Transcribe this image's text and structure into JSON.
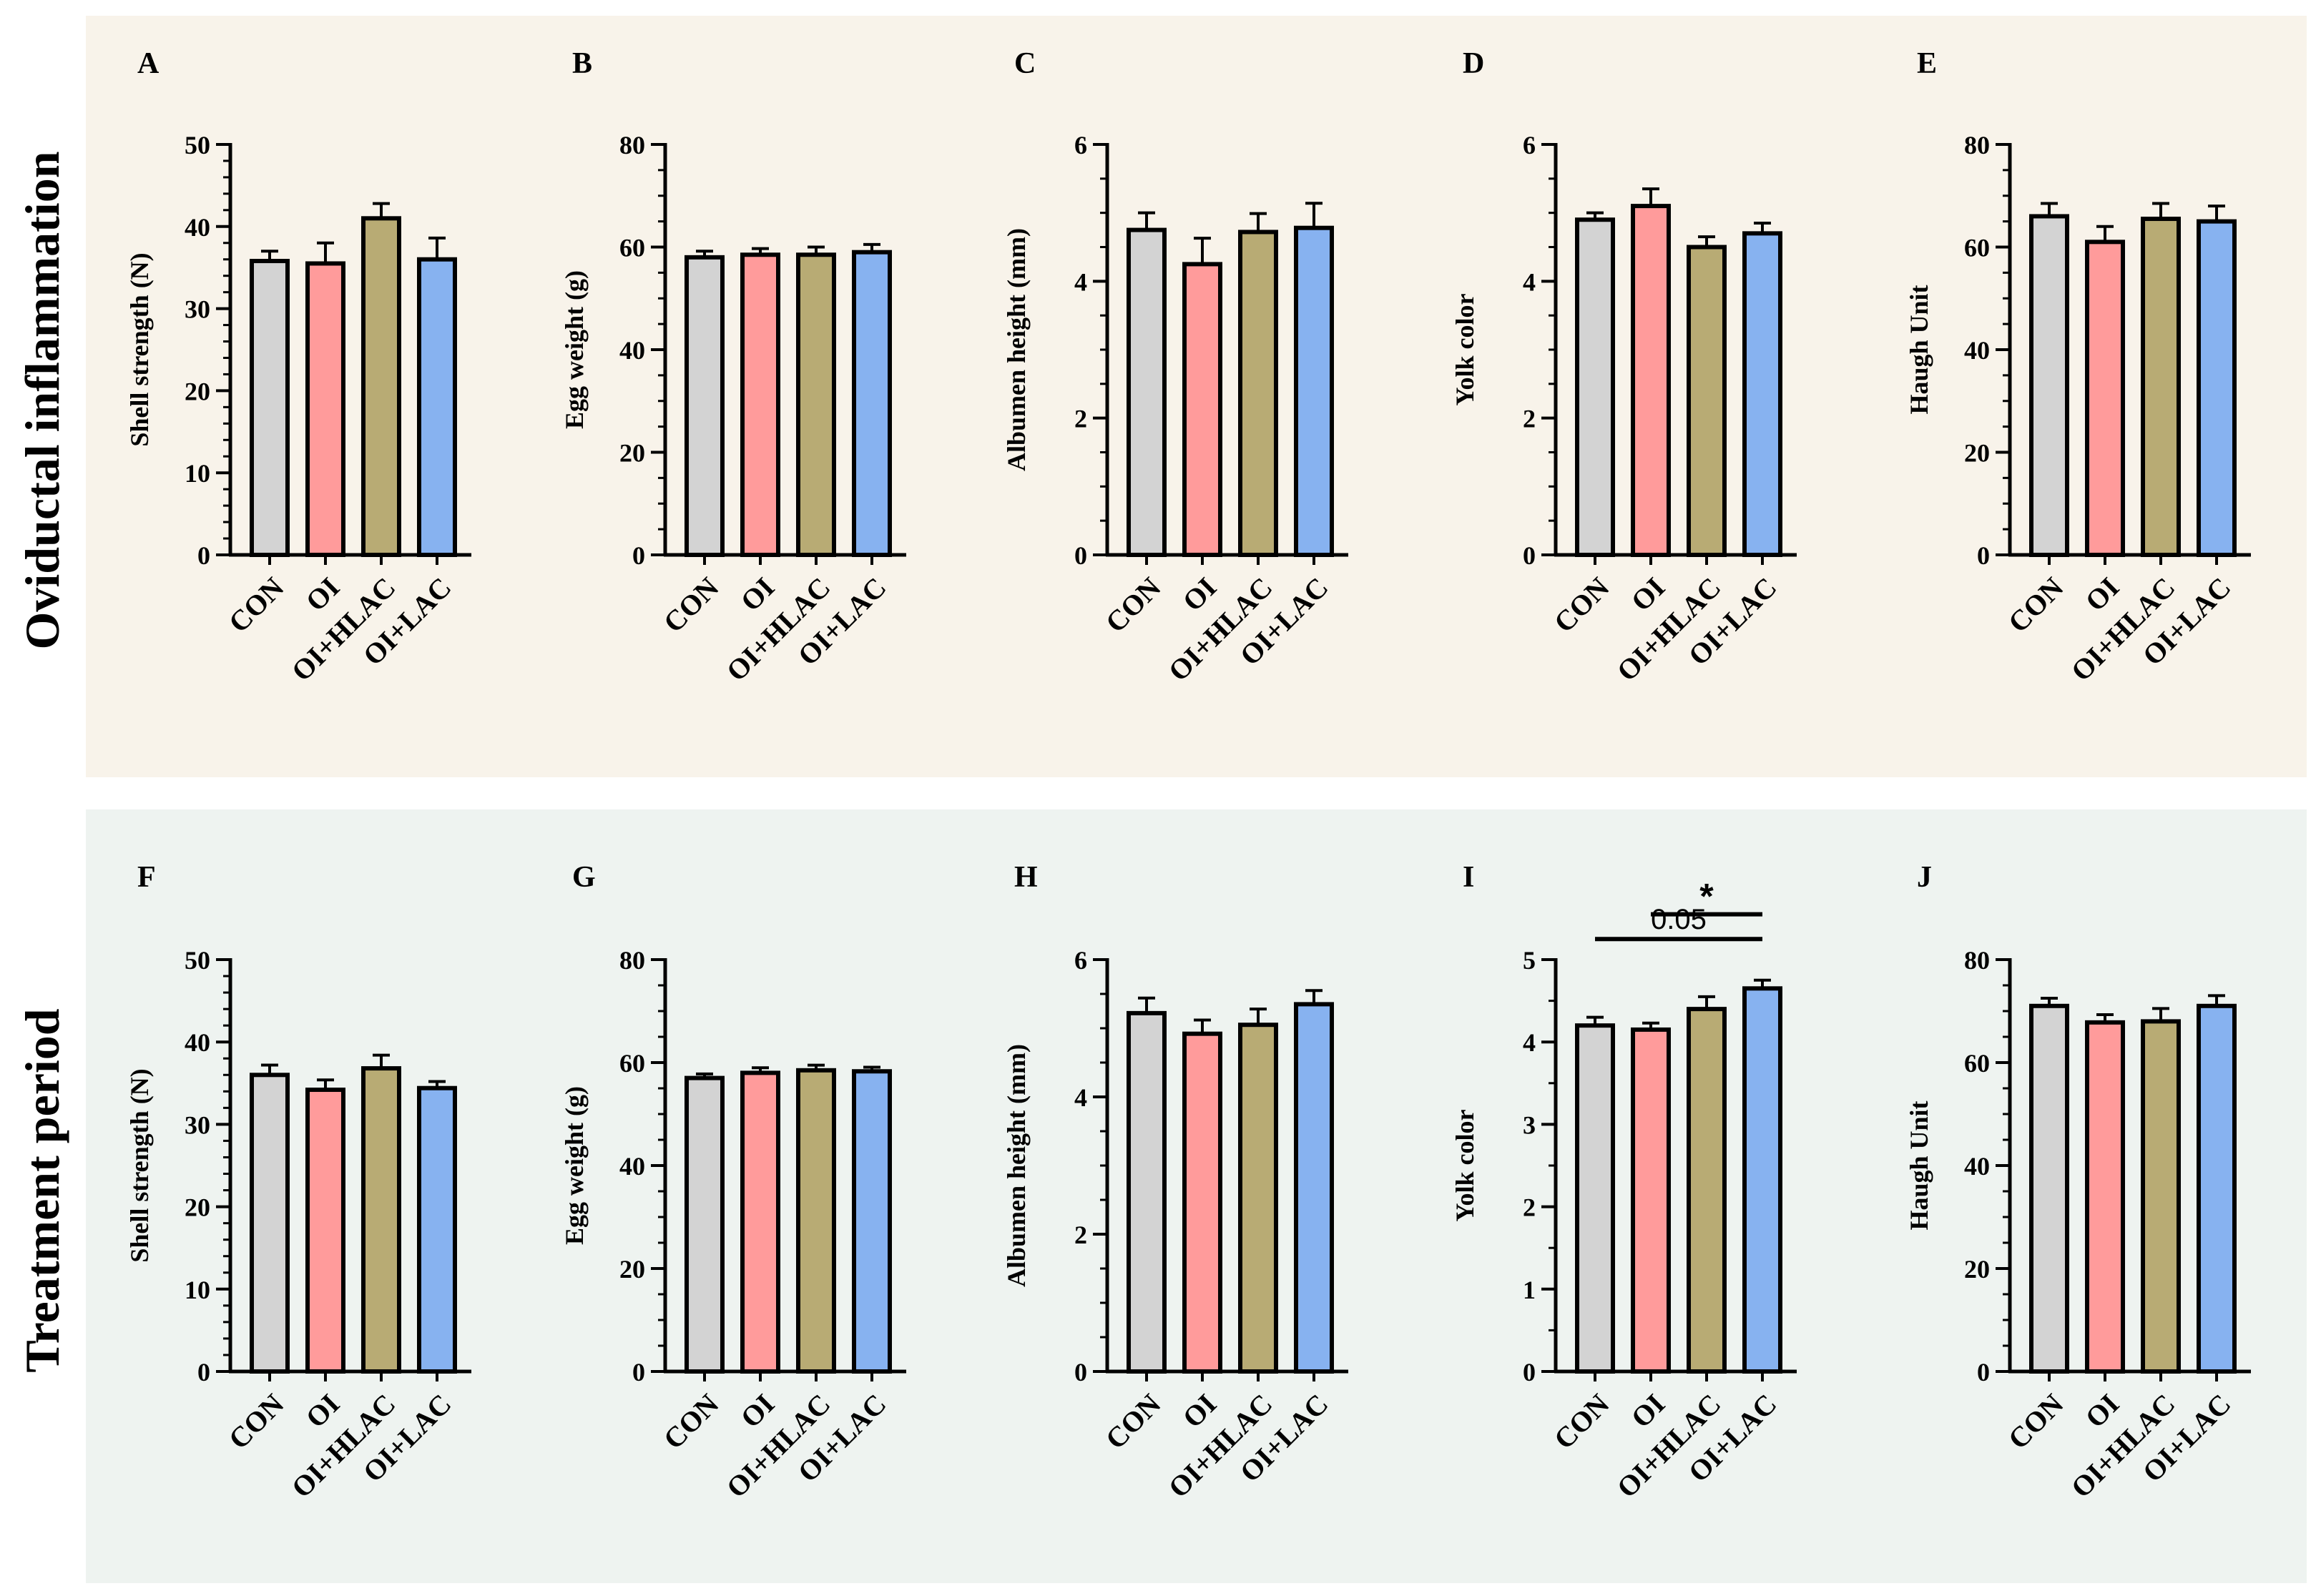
{
  "colors": {
    "row_top_bg": "#f8f3ea",
    "row_bottom_bg": "#eef3f0",
    "axis": "#000000",
    "bars": [
      "#d3d3d3",
      "#ff9b9b",
      "#b8ab74",
      "#87b2f0"
    ]
  },
  "rows": [
    {
      "title": "Oviductal inflammation"
    },
    {
      "title": "Treatment period"
    }
  ],
  "chart_data": [
    {
      "panel": "A",
      "type": "bar",
      "ylabel": "Shell strength (N)",
      "categories": [
        "CON",
        "OI",
        "OI+HLAC",
        "OI+LAC"
      ],
      "values": [
        35.8,
        35.5,
        41.0,
        36.0
      ],
      "errors": [
        1.2,
        2.5,
        1.8,
        2.6
      ],
      "ylim": [
        0,
        50
      ],
      "major_ticks": [
        0,
        10,
        20,
        30,
        40,
        50
      ],
      "minor_step": 2
    },
    {
      "panel": "B",
      "type": "bar",
      "ylabel": "Egg weight (g)",
      "categories": [
        "CON",
        "OI",
        "OI+HLAC",
        "OI+LAC"
      ],
      "values": [
        58.0,
        58.5,
        58.5,
        59.0
      ],
      "errors": [
        1.2,
        1.2,
        1.5,
        1.5
      ],
      "ylim": [
        0,
        80
      ],
      "major_ticks": [
        0,
        20,
        40,
        60,
        80
      ],
      "minor_step": 5
    },
    {
      "panel": "C",
      "type": "bar",
      "ylabel": "Albumen height (mm)",
      "categories": [
        "CON",
        "OI",
        "OI+HLAC",
        "OI+LAC"
      ],
      "values": [
        4.75,
        4.25,
        4.72,
        4.78
      ],
      "errors": [
        0.25,
        0.38,
        0.27,
        0.36
      ],
      "ylim": [
        0,
        6
      ],
      "major_ticks": [
        0,
        2,
        4,
        6
      ],
      "minor_step": 0.5
    },
    {
      "panel": "D",
      "type": "bar",
      "ylabel": "Yolk color",
      "categories": [
        "CON",
        "OI",
        "OI+HLAC",
        "OI+LAC"
      ],
      "values": [
        4.9,
        5.1,
        4.5,
        4.7
      ],
      "errors": [
        0.1,
        0.25,
        0.15,
        0.15
      ],
      "ylim": [
        0,
        6
      ],
      "major_ticks": [
        0,
        2,
        4,
        6
      ],
      "minor_step": 0.5
    },
    {
      "panel": "E",
      "type": "bar",
      "ylabel": "Haugh Unit",
      "categories": [
        "CON",
        "OI",
        "OI+HLAC",
        "OI+LAC"
      ],
      "values": [
        66.0,
        61.0,
        65.5,
        65.0
      ],
      "errors": [
        2.5,
        3.0,
        3.0,
        3.0
      ],
      "ylim": [
        0,
        80
      ],
      "major_ticks": [
        0,
        20,
        40,
        60,
        80
      ],
      "minor_step": 5
    },
    {
      "panel": "F",
      "type": "bar",
      "ylabel": "Shell strength (N)",
      "categories": [
        "CON",
        "OI",
        "OI+HLAC",
        "OI+LAC"
      ],
      "values": [
        36.0,
        34.2,
        36.8,
        34.4
      ],
      "errors": [
        1.2,
        1.2,
        1.6,
        0.8
      ],
      "ylim": [
        0,
        50
      ],
      "major_ticks": [
        0,
        10,
        20,
        30,
        40,
        50
      ],
      "minor_step": 2
    },
    {
      "panel": "G",
      "type": "bar",
      "ylabel": "Egg weight (g)",
      "categories": [
        "CON",
        "OI",
        "OI+HLAC",
        "OI+LAC"
      ],
      "values": [
        57.0,
        58.0,
        58.5,
        58.3
      ],
      "errors": [
        0.8,
        1.0,
        1.0,
        0.8
      ],
      "ylim": [
        0,
        80
      ],
      "major_ticks": [
        0,
        20,
        40,
        60,
        80
      ],
      "minor_step": 5
    },
    {
      "panel": "H",
      "type": "bar",
      "ylabel": "Albumen height (mm)",
      "categories": [
        "CON",
        "OI",
        "OI+HLAC",
        "OI+LAC"
      ],
      "values": [
        5.22,
        4.92,
        5.05,
        5.35
      ],
      "errors": [
        0.22,
        0.2,
        0.23,
        0.2
      ],
      "ylim": [
        0,
        6
      ],
      "major_ticks": [
        0,
        2,
        4,
        6
      ],
      "minor_step": 0.5
    },
    {
      "panel": "I",
      "type": "bar",
      "ylabel": "Yolk color",
      "categories": [
        "CON",
        "OI",
        "OI+HLAC",
        "OI+LAC"
      ],
      "values": [
        4.2,
        4.15,
        4.4,
        4.65
      ],
      "errors": [
        0.1,
        0.08,
        0.15,
        0.1
      ],
      "ylim": [
        0,
        5
      ],
      "major_ticks": [
        0,
        1,
        2,
        3,
        4,
        5
      ],
      "minor_step": 0.5,
      "annotations": [
        {
          "from": 0,
          "to": 3,
          "y": 5.25,
          "label": "0.05"
        },
        {
          "from": 1,
          "to": 3,
          "y": 5.55,
          "label": "*"
        }
      ]
    },
    {
      "panel": "J",
      "type": "bar",
      "ylabel": "Haugh Unit",
      "categories": [
        "CON",
        "OI",
        "OI+HLAC",
        "OI+LAC"
      ],
      "values": [
        71.0,
        67.8,
        68.0,
        71.0
      ],
      "errors": [
        1.5,
        1.5,
        2.5,
        2.0
      ],
      "ylim": [
        0,
        80
      ],
      "major_ticks": [
        0,
        20,
        40,
        60,
        80
      ],
      "minor_step": 5
    }
  ]
}
